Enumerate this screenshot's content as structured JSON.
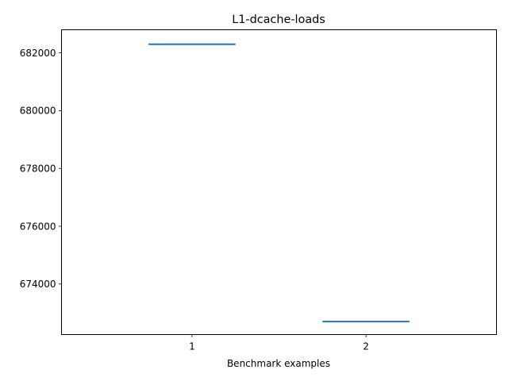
{
  "chart_data": {
    "type": "box",
    "title": "L1-dcache-loads",
    "xlabel": "Benchmark examples",
    "ylabel": "",
    "categories": [
      "1",
      "2"
    ],
    "values": [
      682300,
      672700
    ],
    "ylim": [
      672250,
      682800
    ],
    "yticks": [
      674000,
      676000,
      678000,
      680000,
      682000
    ],
    "ytick_labels": [
      "674000",
      "676000",
      "678000",
      "680000",
      "682000"
    ],
    "grid": false,
    "legend": "none",
    "colors": {
      "series": "#1f77b4"
    }
  }
}
